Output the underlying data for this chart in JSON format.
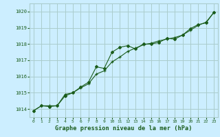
{
  "title": "Graphe pression niveau de la mer (hPa)",
  "bg_color": "#cceeff",
  "grid_color": "#aacccc",
  "line_color": "#1a5c1a",
  "ylim": [
    1013.5,
    1020.5
  ],
  "xlim": [
    -0.5,
    23.5
  ],
  "yticks": [
    1014,
    1015,
    1016,
    1017,
    1018,
    1019,
    1020
  ],
  "xticks": [
    0,
    1,
    2,
    3,
    4,
    5,
    6,
    7,
    8,
    9,
    10,
    11,
    12,
    13,
    14,
    15,
    16,
    17,
    18,
    19,
    20,
    21,
    22,
    23
  ],
  "series1_x": [
    0,
    1,
    2,
    3,
    4,
    5,
    6,
    7,
    8,
    9,
    10,
    11,
    12,
    13,
    14,
    15,
    16,
    17,
    18,
    19,
    20,
    21,
    22,
    23
  ],
  "series1_y": [
    1013.9,
    1014.2,
    1014.2,
    1014.2,
    1014.9,
    1015.0,
    1015.3,
    1015.55,
    1016.15,
    1016.35,
    1016.9,
    1017.2,
    1017.55,
    1017.75,
    1017.95,
    1018.05,
    1018.2,
    1018.3,
    1018.4,
    1018.55,
    1018.85,
    1019.15,
    1019.35,
    1019.95
  ],
  "series2_x": [
    0,
    1,
    2,
    3,
    4,
    5,
    6,
    7,
    8,
    9,
    10,
    11,
    12,
    13,
    14,
    15,
    16,
    17,
    18,
    19,
    20,
    21,
    22,
    23
  ],
  "series2_y": [
    1013.9,
    1014.2,
    1014.15,
    1014.2,
    1014.8,
    1015.0,
    1015.35,
    1015.65,
    1016.6,
    1016.5,
    1017.5,
    1017.8,
    1017.9,
    1017.7,
    1018.0,
    1018.0,
    1018.1,
    1018.35,
    1018.3,
    1018.55,
    1018.95,
    1019.2,
    1019.3,
    1019.95
  ]
}
